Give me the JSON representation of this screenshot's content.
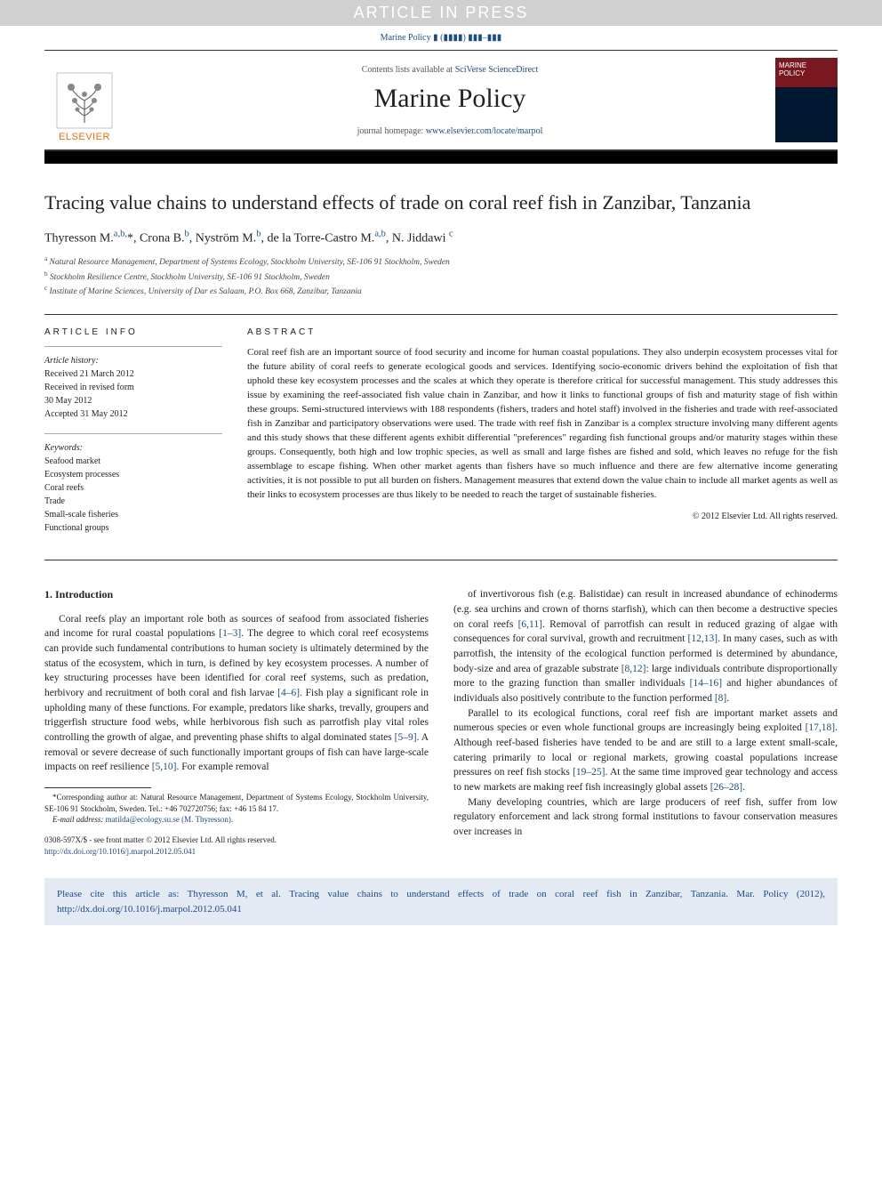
{
  "press_banner": "ARTICLE IN PRESS",
  "top_citation": "Marine Policy ▮ (▮▮▮▮) ▮▮▮–▮▮▮",
  "header": {
    "contents_prefix": "Contents lists available at ",
    "contents_link": "SciVerse ScienceDirect",
    "journal_name": "Marine Policy",
    "homepage_prefix": "journal homepage: ",
    "homepage_link": "www.elsevier.com/locate/marpol",
    "elsevier_word": "ELSEVIER",
    "cover_text_top": "MARINE",
    "cover_text_bot": "POLICY"
  },
  "title": "Tracing value chains to understand effects of trade on coral reef fish in Zanzibar, Tanzania",
  "authors_html": "Thyresson M.<sup>a,b,</sup>*, Crona B.<sup>b</sup>, Nyström M.<sup>b</sup>, de la Torre-Castro M.<sup>a,b</sup>, N. Jiddawi <sup>c</sup>",
  "affiliations": [
    {
      "sup": "a",
      "text": "Natural Resource Management, Department of Systems Ecology, Stockholm University, SE-106 91 Stockholm, Sweden"
    },
    {
      "sup": "b",
      "text": "Stockholm Resilience Centre, Stockholm University, SE-106 91 Stockholm, Sweden"
    },
    {
      "sup": "c",
      "text": "Institute of Marine Sciences, University of Dar es Salaam, P.O. Box 668, Zanzibar, Tanzania"
    }
  ],
  "article_info_heading": "ARTICLE INFO",
  "abstract_heading": "ABSTRACT",
  "history_label": "Article history:",
  "history": [
    "Received 21 March 2012",
    "Received in revised form",
    "30 May 2012",
    "Accepted 31 May 2012"
  ],
  "keywords_label": "Keywords:",
  "keywords": [
    "Seafood market",
    "Ecosystem processes",
    "Coral reefs",
    "Trade",
    "Small-scale fisheries",
    "Functional groups"
  ],
  "abstract": "Coral reef fish are an important source of food security and income for human coastal populations. They also underpin ecosystem processes vital for the future ability of coral reefs to generate ecological goods and services. Identifying socio-economic drivers behind the exploitation of fish that uphold these key ecosystem processes and the scales at which they operate is therefore critical for successful management. This study addresses this issue by examining the reef-associated fish value chain in Zanzibar, and how it links to functional groups of fish and maturity stage of fish within these groups. Semi-structured interviews with 188 respondents (fishers, traders and hotel staff) involved in the fisheries and trade with reef-associated fish in Zanzibar and participatory observations were used. The trade with reef fish in Zanzibar is a complex structure involving many different agents and this study shows that these different agents exhibit differential \"preferences\" regarding fish functional groups and/or maturity stages within these groups. Consequently, both high and low trophic species, as well as small and large fishes are fished and sold, which leaves no refuge for the fish assemblage to escape fishing. When other market agents than fishers have so much influence and there are few alternative income generating activities, it is not possible to put all burden on fishers. Management measures that extend down the value chain to include all market agents as well as their links to ecosystem processes are thus likely to be needed to reach the target of sustainable fisheries.",
  "copyright": "© 2012 Elsevier Ltd. All rights reserved.",
  "section_heading_1": "1. Introduction",
  "para1": "Coral reefs play an important role both as sources of seafood from associated fisheries and income for rural coastal populations [1–3]. The degree to which coral reef ecosystems can provide such fundamental contributions to human society is ultimately determined by the status of the ecosystem, which in turn, is defined by key ecosystem processes. A number of key structuring processes have been identified for coral reef systems, such as predation, herbivory and recruitment of both coral and fish larvae [4–6]. Fish play a significant role in upholding many of these functions. For example, predators like sharks, trevally, groupers and triggerfish structure food webs, while herbivorous fish such as parrotfish play vital roles controlling the growth of algae, and preventing phase shifts to algal dominated states [5–9]. A removal or severe decrease of such functionally important groups of fish can have large-scale impacts on reef resilience [5,10]. For example removal",
  "para2": "of invertivorous fish (e.g. Balistidae) can result in increased abundance of echinoderms (e.g. sea urchins and crown of thorns starfish), which can then become a destructive species on coral reefs [6,11]. Removal of parrotfish can result in reduced grazing of algae with consequences for coral survival, growth and recruitment [12,13]. In many cases, such as with parrotfish, the intensity of the ecological function performed is determined by abundance, body-size and area of grazable substrate [8,12]: large individuals contribute disproportionally more to the grazing function than smaller individuals [14–16] and higher abundances of individuals also positively contribute to the function performed [8].",
  "para3": "Parallel to its ecological functions, coral reef fish are important market assets and numerous species or even whole functional groups are increasingly being exploited [17,18]. Although reef-based fisheries have tended to be and are still to a large extent small-scale, catering primarily to local or regional markets, growing coastal populations increase pressures on reef fish stocks [19–25]. At the same time improved gear technology and access to new markets are making reef fish increasingly global assets [26–28].",
  "para4": "Many developing countries, which are large producers of reef fish, suffer from low regulatory enforcement and lack strong formal institutions to favour conservation measures over increases in",
  "corresponding": "*Corresponding author at: Natural Resource Management, Department of Systems Ecology, Stockholm University, SE-106 91 Stockholm, Sweden. Tel.: +46 702720756; fax: +46 15 84 17.",
  "email_label": "E-mail address:",
  "email": "matilda@ecology.su.se (M. Thyresson).",
  "doi_line1": "0308-597X/$ - see front matter © 2012 Elsevier Ltd. All rights reserved.",
  "doi_line2": "http://dx.doi.org/10.1016/j.marpol.2012.05.041",
  "cite_box": "Please cite this article as: Thyresson M, et al. Tracing value chains to understand effects of trade on coral reef fish in Zanzibar, Tanzania. Mar. Policy (2012), http://dx.doi.org/10.1016/j.marpol.2012.05.041",
  "colors": {
    "link": "#1a4b8c",
    "elsevier_orange": "#ff6a00",
    "cite_bg": "#e3eaf3",
    "banner_bg": "#d0d0d0"
  }
}
